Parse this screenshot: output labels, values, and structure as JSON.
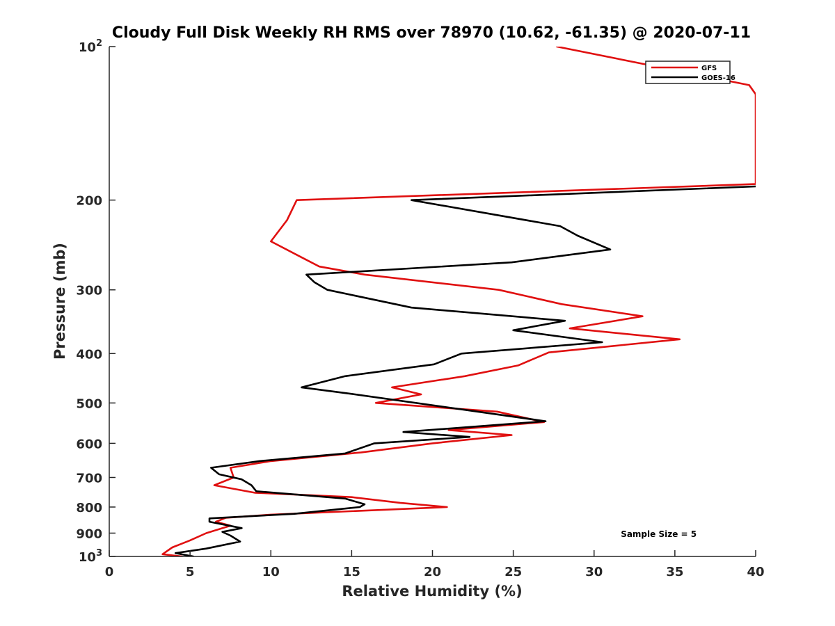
{
  "chart_data": {
    "type": "line",
    "title": "Cloudy Full Disk Weekly RH RMS over 78970 (10.62, -61.35) @ 2020-07-11",
    "xlabel": "Relative Humidity (%)",
    "ylabel": "Pressure (mb)",
    "xlim": [
      0,
      40
    ],
    "ylim": [
      100,
      1000
    ],
    "y_scale": "log",
    "y_reversed": true,
    "grid": false,
    "legend_position": "top-right",
    "x_ticks": [
      "0",
      "5",
      "10",
      "15",
      "20",
      "25",
      "30",
      "35",
      "40"
    ],
    "y_ticks": [
      {
        "value": 100,
        "base": "10",
        "exp": "2"
      },
      {
        "value": 200,
        "label": "200"
      },
      {
        "value": 300,
        "label": "300"
      },
      {
        "value": 400,
        "label": "400"
      },
      {
        "value": 500,
        "label": "500"
      },
      {
        "value": 600,
        "label": "600"
      },
      {
        "value": 700,
        "label": "700"
      },
      {
        "value": 800,
        "label": "800"
      },
      {
        "value": 900,
        "label": "900"
      },
      {
        "value": 1000,
        "base": "10",
        "exp": "3"
      }
    ],
    "series": [
      {
        "name": "GFS",
        "color": "#e01010",
        "points": [
          [
            27.7,
            100
          ],
          [
            39.6,
            119
          ],
          [
            40.0,
            124
          ],
          [
            40.0,
            186
          ],
          [
            11.6,
            200
          ],
          [
            11.0,
            219
          ],
          [
            10.0,
            241
          ],
          [
            12.0,
            260
          ],
          [
            13.0,
            270
          ],
          [
            15.8,
            280
          ],
          [
            24.1,
            300
          ],
          [
            28.0,
            320
          ],
          [
            33.0,
            338
          ],
          [
            28.5,
            357
          ],
          [
            35.3,
            375
          ],
          [
            27.2,
            398
          ],
          [
            25.3,
            422
          ],
          [
            22.0,
            443
          ],
          [
            17.5,
            466
          ],
          [
            19.3,
            481
          ],
          [
            16.5,
            500
          ],
          [
            24.0,
            520
          ],
          [
            26.9,
            545
          ],
          [
            21.0,
            565
          ],
          [
            24.9,
            578
          ],
          [
            20.0,
            600
          ],
          [
            15.6,
            625
          ],
          [
            10.0,
            650
          ],
          [
            7.5,
            670
          ],
          [
            7.7,
            700
          ],
          [
            6.5,
            725
          ],
          [
            9.0,
            750
          ],
          [
            15.0,
            765
          ],
          [
            18.0,
            785
          ],
          [
            20.9,
            800
          ],
          [
            10.0,
            828
          ],
          [
            7.2,
            840
          ],
          [
            6.6,
            855
          ],
          [
            7.5,
            870
          ],
          [
            6.0,
            900
          ],
          [
            5.0,
            930
          ],
          [
            3.9,
            960
          ],
          [
            3.3,
            990
          ],
          [
            4.5,
            1000
          ]
        ]
      },
      {
        "name": "GOES-16",
        "color": "#000000",
        "points": [
          [
            40.0,
            188
          ],
          [
            18.7,
            200
          ],
          [
            27.9,
            225
          ],
          [
            29.0,
            235
          ],
          [
            31.0,
            250
          ],
          [
            24.9,
            265
          ],
          [
            12.2,
            280
          ],
          [
            12.7,
            290
          ],
          [
            13.5,
            300
          ],
          [
            18.7,
            325
          ],
          [
            28.2,
            345
          ],
          [
            25.0,
            360
          ],
          [
            30.5,
            380
          ],
          [
            21.8,
            400
          ],
          [
            20.1,
            420
          ],
          [
            14.6,
            443
          ],
          [
            11.9,
            466
          ],
          [
            15.0,
            480
          ],
          [
            27.0,
            543
          ],
          [
            18.2,
            570
          ],
          [
            22.3,
            583
          ],
          [
            16.4,
            600
          ],
          [
            14.6,
            628
          ],
          [
            9.3,
            650
          ],
          [
            6.3,
            670
          ],
          [
            6.8,
            690
          ],
          [
            8.2,
            706
          ],
          [
            8.8,
            725
          ],
          [
            9.1,
            745
          ],
          [
            14.6,
            770
          ],
          [
            15.8,
            790
          ],
          [
            15.5,
            800
          ],
          [
            11.4,
            825
          ],
          [
            6.2,
            842
          ],
          [
            6.2,
            855
          ],
          [
            8.2,
            880
          ],
          [
            7.0,
            895
          ],
          [
            7.5,
            910
          ],
          [
            8.1,
            935
          ],
          [
            6.0,
            965
          ],
          [
            4.1,
            985
          ],
          [
            5.2,
            1000
          ]
        ]
      }
    ],
    "annotations": [
      {
        "text": "Sample Size = 5",
        "x": 34,
        "p": 905
      }
    ]
  }
}
